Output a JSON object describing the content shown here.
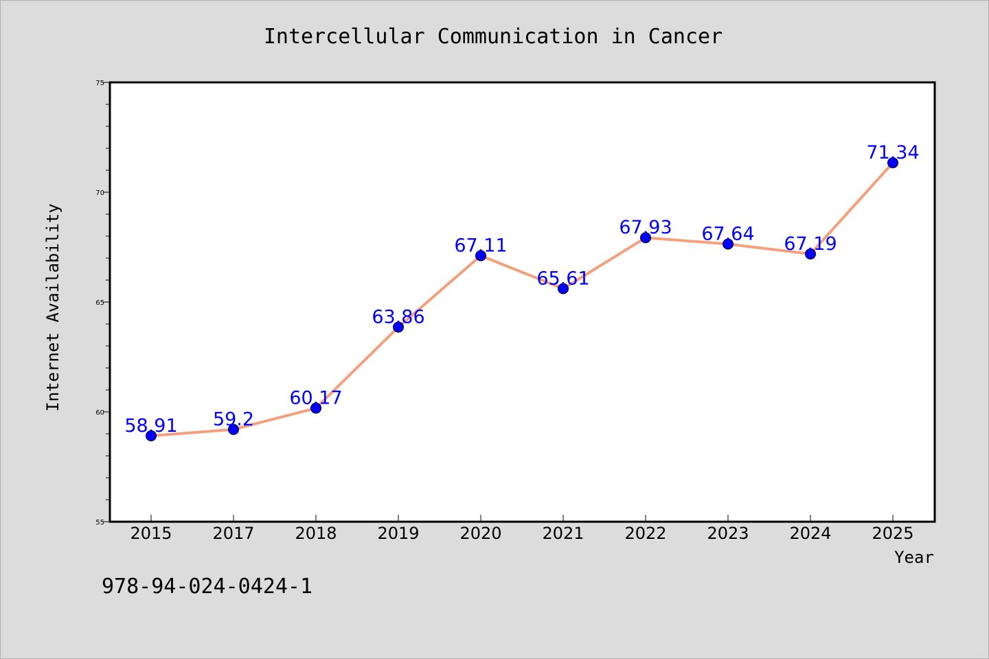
{
  "chart_data": {
    "type": "line",
    "title": "Intercellular Communication in Cancer",
    "xlabel": "Year",
    "ylabel": "Internet Availability",
    "categories": [
      "2015",
      "2017",
      "2018",
      "2019",
      "2020",
      "2021",
      "2022",
      "2023",
      "2024",
      "2025"
    ],
    "values": [
      58.91,
      59.2,
      60.17,
      63.86,
      67.11,
      65.61,
      67.93,
      67.64,
      67.19,
      71.34
    ],
    "data_labels": [
      "58.91",
      "59.2",
      "60.17",
      "63.86",
      "67.11",
      "65.61",
      "67.93",
      "67.64",
      "67.19",
      "71.34"
    ],
    "ylim": [
      55,
      75
    ],
    "yticks": [
      55,
      60,
      65,
      70,
      75
    ],
    "grid": false,
    "line_color": "#f4a07c",
    "marker_color": "#0000ff",
    "label_color": "#0000ff"
  },
  "footer": {
    "isbn": "978-94-024-0424-1"
  }
}
